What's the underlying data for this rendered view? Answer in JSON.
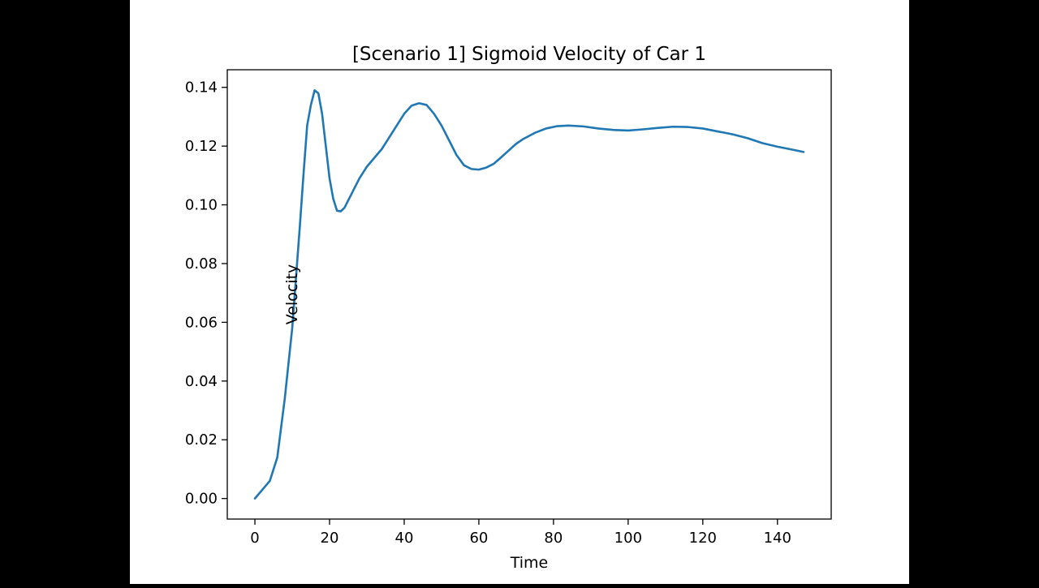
{
  "chart_data": {
    "type": "line",
    "title": "[Scenario 1] Sigmoid Velocity of Car 1",
    "xlabel": "Time",
    "ylabel": "Velocity",
    "xlim": [
      -7.4,
      154.4
    ],
    "ylim": [
      -0.007,
      0.146
    ],
    "xticks": [
      0,
      20,
      40,
      60,
      80,
      100,
      120,
      140
    ],
    "yticks": [
      0.0,
      0.02,
      0.04,
      0.06,
      0.08,
      0.1,
      0.12,
      0.14
    ],
    "xtick_labels": [
      "0",
      "20",
      "40",
      "60",
      "80",
      "100",
      "120",
      "140"
    ],
    "ytick_labels": [
      "0.00",
      "0.02",
      "0.04",
      "0.06",
      "0.08",
      "0.10",
      "0.12",
      "0.14"
    ],
    "grid": false,
    "colors": {
      "line": "#1f77b4",
      "background": "#ffffff",
      "frame": "#000000",
      "margin": "#000000"
    },
    "series": [
      {
        "x": [
          0,
          2,
          4,
          6,
          8,
          10,
          12,
          13,
          14,
          15,
          16,
          17,
          18,
          19,
          20,
          21,
          22,
          23,
          24,
          26,
          28,
          30,
          32,
          34,
          36,
          38,
          40,
          42,
          44,
          46,
          48,
          50,
          52,
          54,
          56,
          58,
          60,
          62,
          64,
          66,
          68,
          70,
          72,
          75,
          78,
          81,
          84,
          88,
          92,
          96,
          100,
          104,
          108,
          112,
          116,
          120,
          124,
          128,
          132,
          136,
          140,
          144,
          147
        ],
        "y": [
          0.0,
          0.003,
          0.006,
          0.014,
          0.034,
          0.058,
          0.092,
          0.11,
          0.127,
          0.134,
          0.139,
          0.138,
          0.131,
          0.12,
          0.109,
          0.102,
          0.098,
          0.0978,
          0.099,
          0.104,
          0.109,
          0.113,
          0.116,
          0.119,
          0.123,
          0.127,
          0.131,
          0.1338,
          0.1346,
          0.134,
          0.131,
          0.127,
          0.122,
          0.117,
          0.1135,
          0.1122,
          0.112,
          0.1127,
          0.114,
          0.1162,
          0.1185,
          0.1208,
          0.1225,
          0.1245,
          0.126,
          0.1268,
          0.127,
          0.1267,
          0.126,
          0.1255,
          0.1253,
          0.1257,
          0.1262,
          0.1266,
          0.1265,
          0.126,
          0.125,
          0.124,
          0.1227,
          0.121,
          0.1198,
          0.1188,
          0.118
        ]
      }
    ]
  }
}
